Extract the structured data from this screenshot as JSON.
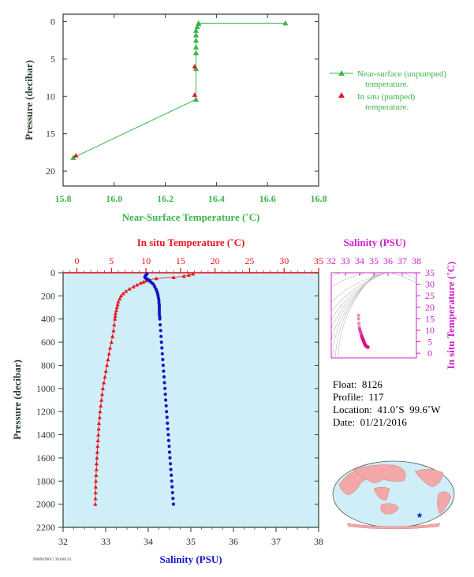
{
  "colors": {
    "green": "#3cb44b",
    "red": "#e8141e",
    "blue": "#1414c8",
    "magenta": "#cc22cc",
    "panel_bg": "#cfeef8",
    "axis": "#2c3e2c"
  },
  "info": {
    "float": "Float:  8126",
    "profile": "Profile:  117",
    "location": "Location:  41.0˚S  99.6˚W",
    "date": "Date:  01/21/2016"
  },
  "footer_code": "N0094T8017 20160124",
  "chart_data": [
    {
      "type": "line",
      "xlabel": "Near-Surface Temperature (˚C)",
      "ylabel": "Pressure (decibar)",
      "xlim": [
        15.8,
        16.8
      ],
      "ylim": [
        22,
        -1
      ],
      "xticks": [
        "15.8",
        "16.0",
        "16.2",
        "16.4",
        "16.6",
        "16.8"
      ],
      "yticks": [
        "0",
        "5",
        "10",
        "15",
        "20"
      ],
      "legend_position": "right",
      "series": [
        {
          "name": "Near-surface (unpumped) temperature.",
          "marker": "triangle",
          "points": [
            [
              16.67,
              0.2
            ],
            [
              16.33,
              0.2
            ],
            [
              16.33,
              0.3
            ],
            [
              16.325,
              0.7
            ],
            [
              16.32,
              1.2
            ],
            [
              16.32,
              1.8
            ],
            [
              16.32,
              2.5
            ],
            [
              16.32,
              3.4
            ],
            [
              16.32,
              4.2
            ],
            [
              16.32,
              6.3
            ],
            [
              16.32,
              10.4
            ],
            [
              15.84,
              18.2
            ]
          ]
        },
        {
          "name": "In situ (pumped) temperature.",
          "marker": "triangle",
          "points": [
            [
              16.315,
              6.0
            ],
            [
              16.315,
              9.8
            ],
            [
              15.85,
              17.9
            ]
          ]
        }
      ]
    },
    {
      "type": "line",
      "top_xlabel": "In situ Temperature (˚C)",
      "bottom_xlabel": "Salinity (PSU)",
      "ylabel": "Pressure (decibar)",
      "temp_xlim": [
        -2,
        35
      ],
      "sal_xlim": [
        32,
        38
      ],
      "ylim": [
        2200,
        0
      ],
      "temp_ticks": [
        "0",
        "5",
        "10",
        "15",
        "20",
        "25",
        "30",
        "35"
      ],
      "sal_ticks": [
        "32",
        "33",
        "34",
        "35",
        "36",
        "37",
        "38"
      ],
      "yticks": [
        "0",
        "200",
        "400",
        "600",
        "800",
        "1000",
        "1200",
        "1400",
        "1600",
        "1800",
        "2000",
        "2200"
      ],
      "series": [
        {
          "name": "temperature",
          "points": [
            [
              16.8,
              10
            ],
            [
              16.2,
              20
            ],
            [
              15.5,
              30
            ],
            [
              14.0,
              40
            ],
            [
              11.5,
              50
            ],
            [
              10.4,
              60
            ],
            [
              10.0,
              70
            ],
            [
              9.6,
              80
            ],
            [
              9.2,
              90
            ],
            [
              8.7,
              105
            ],
            [
              8.2,
              120
            ],
            [
              7.6,
              140
            ],
            [
              7.1,
              160
            ],
            [
              6.7,
              180
            ],
            [
              6.4,
              200
            ],
            [
              6.2,
              225
            ],
            [
              6.0,
              250
            ],
            [
              5.9,
              275
            ],
            [
              5.8,
              300
            ],
            [
              5.7,
              325
            ],
            [
              5.6,
              350
            ],
            [
              5.55,
              375
            ],
            [
              5.5,
              400
            ],
            [
              5.4,
              450
            ],
            [
              5.3,
              500
            ],
            [
              5.15,
              550
            ],
            [
              5.0,
              600
            ],
            [
              4.8,
              650
            ],
            [
              4.65,
              700
            ],
            [
              4.5,
              750
            ],
            [
              4.35,
              800
            ],
            [
              4.2,
              850
            ],
            [
              4.05,
              900
            ],
            [
              3.9,
              950
            ],
            [
              3.75,
              1000
            ],
            [
              3.65,
              1050
            ],
            [
              3.55,
              1100
            ],
            [
              3.45,
              1150
            ],
            [
              3.35,
              1200
            ],
            [
              3.3,
              1250
            ],
            [
              3.2,
              1300
            ],
            [
              3.15,
              1350
            ],
            [
              3.1,
              1400
            ],
            [
              3.05,
              1450
            ],
            [
              3.0,
              1500
            ],
            [
              2.95,
              1550
            ],
            [
              2.9,
              1600
            ],
            [
              2.85,
              1650
            ],
            [
              2.82,
              1700
            ],
            [
              2.78,
              1750
            ],
            [
              2.75,
              1800
            ],
            [
              2.72,
              1850
            ],
            [
              2.7,
              1900
            ],
            [
              2.68,
              1950
            ],
            [
              2.66,
              2000
            ]
          ]
        },
        {
          "name": "salinity",
          "points": [
            [
              33.97,
              10
            ],
            [
              33.95,
              20
            ],
            [
              33.93,
              30
            ],
            [
              33.92,
              40
            ],
            [
              33.95,
              50
            ],
            [
              34.0,
              60
            ],
            [
              34.03,
              70
            ],
            [
              34.06,
              80
            ],
            [
              34.09,
              90
            ],
            [
              34.12,
              100
            ],
            [
              34.15,
              120
            ],
            [
              34.18,
              140
            ],
            [
              34.2,
              160
            ],
            [
              34.22,
              180
            ],
            [
              34.23,
              200
            ],
            [
              34.24,
              220
            ],
            [
              34.25,
              240
            ],
            [
              34.25,
              260
            ],
            [
              34.26,
              280
            ],
            [
              34.26,
              300
            ],
            [
              34.26,
              320
            ],
            [
              34.26,
              340
            ],
            [
              34.26,
              360
            ],
            [
              34.27,
              380
            ],
            [
              34.27,
              400
            ],
            [
              34.28,
              450
            ],
            [
              34.29,
              500
            ],
            [
              34.3,
              550
            ],
            [
              34.31,
              600
            ],
            [
              34.32,
              650
            ],
            [
              34.33,
              700
            ],
            [
              34.34,
              750
            ],
            [
              34.35,
              800
            ],
            [
              34.36,
              850
            ],
            [
              34.37,
              900
            ],
            [
              34.38,
              950
            ],
            [
              34.39,
              1000
            ],
            [
              34.4,
              1050
            ],
            [
              34.41,
              1100
            ],
            [
              34.42,
              1150
            ],
            [
              34.43,
              1200
            ],
            [
              34.44,
              1250
            ],
            [
              34.45,
              1300
            ],
            [
              34.46,
              1350
            ],
            [
              34.47,
              1400
            ],
            [
              34.48,
              1450
            ],
            [
              34.49,
              1500
            ],
            [
              34.5,
              1550
            ],
            [
              34.51,
              1600
            ],
            [
              34.52,
              1650
            ],
            [
              34.53,
              1700
            ],
            [
              34.54,
              1750
            ],
            [
              34.55,
              1800
            ],
            [
              34.56,
              1850
            ],
            [
              34.57,
              1900
            ],
            [
              34.58,
              1950
            ],
            [
              34.59,
              2000
            ]
          ]
        }
      ]
    },
    {
      "type": "scatter",
      "top_xlabel": "Salinity (PSU)",
      "right_ylabel": "In situ Temperature (˚C)",
      "xlim": [
        32,
        38
      ],
      "ylim": [
        -2,
        35
      ],
      "xticks": [
        "32",
        "33",
        "34",
        "35",
        "36",
        "37",
        "38"
      ],
      "yticks": [
        "0",
        "5",
        "10",
        "15",
        "20",
        "25",
        "30",
        "35"
      ],
      "points": [
        [
          33.92,
          16.5
        ],
        [
          33.93,
          15.0
        ],
        [
          33.95,
          13.0
        ],
        [
          33.98,
          11.5
        ],
        [
          34.0,
          10.5
        ],
        [
          34.05,
          9.5
        ],
        [
          34.1,
          8.5
        ],
        [
          34.13,
          7.8
        ],
        [
          34.16,
          7.2
        ],
        [
          34.19,
          6.7
        ],
        [
          34.22,
          6.3
        ],
        [
          34.24,
          6.0
        ],
        [
          34.25,
          5.8
        ],
        [
          34.26,
          5.6
        ],
        [
          34.27,
          5.4
        ],
        [
          34.29,
          5.1
        ],
        [
          34.31,
          4.8
        ],
        [
          34.33,
          4.5
        ],
        [
          34.35,
          4.2
        ],
        [
          34.37,
          3.9
        ],
        [
          34.39,
          3.7
        ],
        [
          34.41,
          3.5
        ],
        [
          34.43,
          3.3
        ],
        [
          34.45,
          3.2
        ],
        [
          34.47,
          3.05
        ],
        [
          34.49,
          2.95
        ],
        [
          34.51,
          2.85
        ],
        [
          34.53,
          2.78
        ],
        [
          34.55,
          2.72
        ],
        [
          34.57,
          2.68
        ],
        [
          34.59,
          2.66
        ]
      ]
    }
  ]
}
